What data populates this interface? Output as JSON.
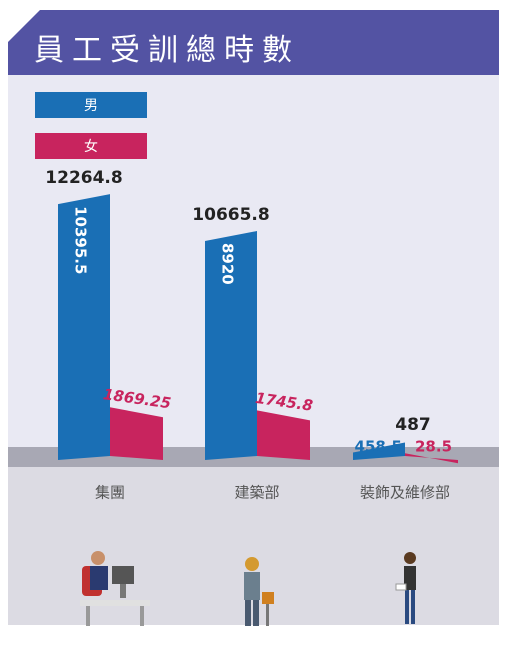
{
  "chart_data": {
    "type": "bar",
    "title": "員工受訓總時數",
    "categories": [
      "集團",
      "建築部",
      "裝飾及維修部"
    ],
    "series": [
      {
        "name": "男",
        "color": "#1a6fb5",
        "values": [
          10395.5,
          8920,
          458.5
        ]
      },
      {
        "name": "女",
        "color": "#c8245e",
        "values": [
          1869.25,
          1745.8,
          28.5
        ]
      }
    ],
    "totals": [
      12264.8,
      10665.8,
      487
    ]
  }
}
